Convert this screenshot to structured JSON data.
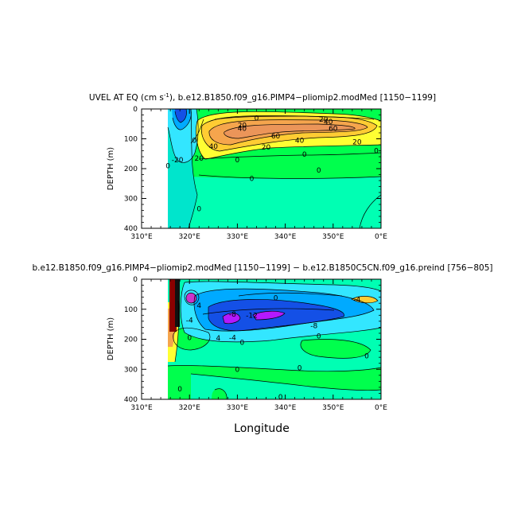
{
  "chart_data": [
    {
      "type": "heatmap",
      "title_main": "UVEL AT EQ (cm s",
      "title_sup": "-1",
      "title_rest": "), b.e12.B1850.f09_g16.PIMP4−pliomip2.modMed [1150−1199]",
      "ylabel": "DEPTH (m)",
      "x_ticks": [
        "310°E",
        "320°E",
        "330°E",
        "340°E",
        "350°E",
        "0°E"
      ],
      "y_ticks": [
        "0",
        "100",
        "200",
        "300",
        "400"
      ],
      "xlim": [
        310,
        360
      ],
      "ylim": [
        0,
        400
      ],
      "contour_labels": [
        {
          "text": "0",
          "x": 334,
          "y": 30
        },
        {
          "text": "20",
          "x": 348,
          "y": 35
        },
        {
          "text": "40",
          "x": 349,
          "y": 42
        },
        {
          "text": "60",
          "x": 350,
          "y": 65
        },
        {
          "text": "20",
          "x": 331,
          "y": 55
        },
        {
          "text": "40",
          "x": 331,
          "y": 65
        },
        {
          "text": "60",
          "x": 338,
          "y": 90
        },
        {
          "text": "40",
          "x": 343,
          "y": 105
        },
        {
          "text": "20",
          "x": 336,
          "y": 128
        },
        {
          "text": "20",
          "x": 355,
          "y": 110
        },
        {
          "text": "40",
          "x": 325,
          "y": 125
        },
        {
          "text": "20",
          "x": 322,
          "y": 165
        },
        {
          "text": "0",
          "x": 359,
          "y": 140
        },
        {
          "text": "0",
          "x": 344,
          "y": 152
        },
        {
          "text": "0",
          "x": 330,
          "y": 170
        },
        {
          "text": "0",
          "x": 321,
          "y": 105
        },
        {
          "text": "-20",
          "x": 317.5,
          "y": 170
        },
        {
          "text": "0",
          "x": 315.5,
          "y": 190
        },
        {
          "text": "0",
          "x": 347,
          "y": 205
        },
        {
          "text": "0",
          "x": 333,
          "y": 233
        },
        {
          "text": "0",
          "x": 322,
          "y": 335
        }
      ]
    },
    {
      "type": "heatmap",
      "title": "b.e12.B1850.f09_g16.PIMP4−pliomip2.modMed [1150−1199] − b.e12.B1850C5CN.f09_g16.preind [756−805]",
      "ylabel": "DEPTH (m)",
      "xlabel": "Longitude",
      "x_ticks": [
        "310°E",
        "320°E",
        "330°E",
        "340°E",
        "350°E",
        "0°E"
      ],
      "y_ticks": [
        "0",
        "100",
        "200",
        "300",
        "400"
      ],
      "xlim": [
        310,
        360
      ],
      "ylim": [
        0,
        400
      ],
      "contour_labels": [
        {
          "text": "-4",
          "x": 355,
          "y": 68
        },
        {
          "text": "4",
          "x": 322,
          "y": 88
        },
        {
          "text": "-4",
          "x": 320,
          "y": 136
        },
        {
          "text": "-8",
          "x": 329,
          "y": 116
        },
        {
          "text": "-12",
          "x": 333,
          "y": 120
        },
        {
          "text": "0",
          "x": 338,
          "y": 62
        },
        {
          "text": "-8",
          "x": 346,
          "y": 155
        },
        {
          "text": "-4",
          "x": 329,
          "y": 195
        },
        {
          "text": "0",
          "x": 331,
          "y": 210
        },
        {
          "text": "0",
          "x": 347,
          "y": 190
        },
        {
          "text": "4",
          "x": 326,
          "y": 196
        },
        {
          "text": "0",
          "x": 330,
          "y": 300
        },
        {
          "text": "0",
          "x": 343,
          "y": 295
        },
        {
          "text": "0",
          "x": 357,
          "y": 255
        },
        {
          "text": "0",
          "x": 320,
          "y": 195
        },
        {
          "text": "0",
          "x": 318,
          "y": 365
        },
        {
          "text": "0",
          "x": 339,
          "y": 392
        }
      ]
    }
  ]
}
